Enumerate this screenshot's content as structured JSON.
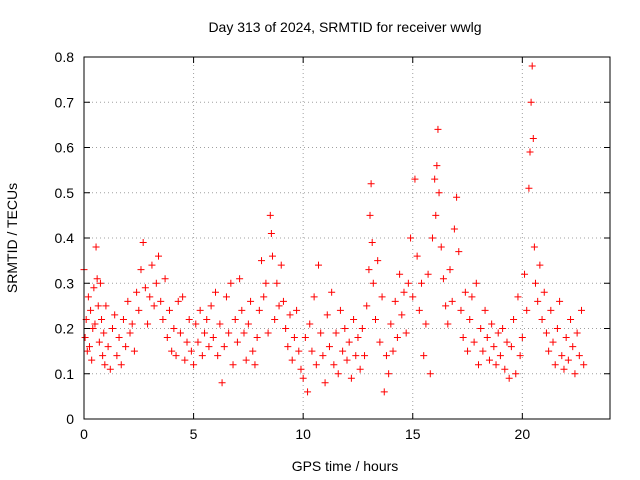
{
  "chart_data": {
    "type": "scatter",
    "title": "Day 313 of 2024, SRMTID for receiver wwlg",
    "xlabel": "GPS time / hours",
    "ylabel": "SRMTID / TECUs",
    "xlim": [
      0,
      24
    ],
    "ylim": [
      0,
      0.8
    ],
    "xticks": [
      0,
      5,
      10,
      15,
      20
    ],
    "xtick_labels": [
      "0",
      "5",
      "10",
      "15",
      "20"
    ],
    "yticks": [
      0,
      0.1,
      0.2,
      0.3,
      0.4,
      0.5,
      0.6,
      0.7,
      0.8
    ],
    "ytick_labels": [
      "0",
      "0.1",
      "0.2",
      "0.3",
      "0.4",
      "0.5",
      "0.6",
      "0.7",
      "0.8"
    ],
    "grid": true,
    "marker": "+",
    "color": "#ff0000",
    "series": [
      {
        "name": "SRMTID",
        "points": [
          [
            0.0,
            0.33
          ],
          [
            0.05,
            0.18
          ],
          [
            0.1,
            0.22
          ],
          [
            0.15,
            0.15
          ],
          [
            0.2,
            0.27
          ],
          [
            0.25,
            0.16
          ],
          [
            0.3,
            0.24
          ],
          [
            0.35,
            0.13
          ],
          [
            0.4,
            0.2
          ],
          [
            0.45,
            0.29
          ],
          [
            0.5,
            0.21
          ],
          [
            0.55,
            0.38
          ],
          [
            0.6,
            0.31
          ],
          [
            0.65,
            0.25
          ],
          [
            0.7,
            0.17
          ],
          [
            0.75,
            0.3
          ],
          [
            0.8,
            0.22
          ],
          [
            0.85,
            0.14
          ],
          [
            0.9,
            0.19
          ],
          [
            0.95,
            0.12
          ],
          [
            1.0,
            0.25
          ],
          [
            1.1,
            0.16
          ],
          [
            1.2,
            0.11
          ],
          [
            1.3,
            0.2
          ],
          [
            1.4,
            0.23
          ],
          [
            1.5,
            0.14
          ],
          [
            1.6,
            0.18
          ],
          [
            1.7,
            0.12
          ],
          [
            1.8,
            0.22
          ],
          [
            1.9,
            0.16
          ],
          [
            2.0,
            0.26
          ],
          [
            2.1,
            0.19
          ],
          [
            2.2,
            0.21
          ],
          [
            2.3,
            0.15
          ],
          [
            2.4,
            0.28
          ],
          [
            2.5,
            0.24
          ],
          [
            2.6,
            0.33
          ],
          [
            2.7,
            0.39
          ],
          [
            2.8,
            0.29
          ],
          [
            2.9,
            0.21
          ],
          [
            3.0,
            0.27
          ],
          [
            3.1,
            0.34
          ],
          [
            3.2,
            0.25
          ],
          [
            3.3,
            0.3
          ],
          [
            3.4,
            0.36
          ],
          [
            3.5,
            0.26
          ],
          [
            3.6,
            0.22
          ],
          [
            3.7,
            0.31
          ],
          [
            3.8,
            0.18
          ],
          [
            3.9,
            0.24
          ],
          [
            4.0,
            0.15
          ],
          [
            4.1,
            0.2
          ],
          [
            4.2,
            0.14
          ],
          [
            4.3,
            0.26
          ],
          [
            4.4,
            0.19
          ],
          [
            4.5,
            0.27
          ],
          [
            4.6,
            0.13
          ],
          [
            4.7,
            0.17
          ],
          [
            4.8,
            0.22
          ],
          [
            4.9,
            0.15
          ],
          [
            5.0,
            0.12
          ],
          [
            5.1,
            0.21
          ],
          [
            5.2,
            0.17
          ],
          [
            5.3,
            0.24
          ],
          [
            5.4,
            0.14
          ],
          [
            5.5,
            0.19
          ],
          [
            5.6,
            0.22
          ],
          [
            5.7,
            0.16
          ],
          [
            5.8,
            0.25
          ],
          [
            5.9,
            0.18
          ],
          [
            6.0,
            0.28
          ],
          [
            6.1,
            0.14
          ],
          [
            6.2,
            0.21
          ],
          [
            6.3,
            0.08
          ],
          [
            6.4,
            0.16
          ],
          [
            6.5,
            0.27
          ],
          [
            6.6,
            0.19
          ],
          [
            6.7,
            0.3
          ],
          [
            6.8,
            0.12
          ],
          [
            6.9,
            0.22
          ],
          [
            7.0,
            0.17
          ],
          [
            7.1,
            0.31
          ],
          [
            7.2,
            0.24
          ],
          [
            7.3,
            0.19
          ],
          [
            7.4,
            0.13
          ],
          [
            7.5,
            0.21
          ],
          [
            7.6,
            0.26
          ],
          [
            7.7,
            0.15
          ],
          [
            7.8,
            0.12
          ],
          [
            7.9,
            0.18
          ],
          [
            8.0,
            0.24
          ],
          [
            8.1,
            0.35
          ],
          [
            8.2,
            0.27
          ],
          [
            8.3,
            0.3
          ],
          [
            8.4,
            0.19
          ],
          [
            8.5,
            0.45
          ],
          [
            8.55,
            0.41
          ],
          [
            8.6,
            0.36
          ],
          [
            8.7,
            0.22
          ],
          [
            8.8,
            0.3
          ],
          [
            8.9,
            0.25
          ],
          [
            9.0,
            0.34
          ],
          [
            9.1,
            0.26
          ],
          [
            9.2,
            0.2
          ],
          [
            9.3,
            0.16
          ],
          [
            9.4,
            0.23
          ],
          [
            9.5,
            0.13
          ],
          [
            9.6,
            0.18
          ],
          [
            9.7,
            0.24
          ],
          [
            9.8,
            0.15
          ],
          [
            9.9,
            0.11
          ],
          [
            10.0,
            0.09
          ],
          [
            10.1,
            0.18
          ],
          [
            10.2,
            0.06
          ],
          [
            10.3,
            0.21
          ],
          [
            10.4,
            0.15
          ],
          [
            10.5,
            0.27
          ],
          [
            10.6,
            0.12
          ],
          [
            10.7,
            0.34
          ],
          [
            10.8,
            0.19
          ],
          [
            10.9,
            0.14
          ],
          [
            11.0,
            0.08
          ],
          [
            11.1,
            0.23
          ],
          [
            11.2,
            0.16
          ],
          [
            11.3,
            0.28
          ],
          [
            11.4,
            0.12
          ],
          [
            11.5,
            0.19
          ],
          [
            11.6,
            0.1
          ],
          [
            11.7,
            0.24
          ],
          [
            11.8,
            0.15
          ],
          [
            11.9,
            0.2
          ],
          [
            12.0,
            0.13
          ],
          [
            12.1,
            0.17
          ],
          [
            12.2,
            0.09
          ],
          [
            12.3,
            0.22
          ],
          [
            12.4,
            0.14
          ],
          [
            12.5,
            0.18
          ],
          [
            12.6,
            0.11
          ],
          [
            12.7,
            0.2
          ],
          [
            12.8,
            0.14
          ],
          [
            12.9,
            0.25
          ],
          [
            13.0,
            0.33
          ],
          [
            13.05,
            0.45
          ],
          [
            13.1,
            0.52
          ],
          [
            13.15,
            0.39
          ],
          [
            13.2,
            0.3
          ],
          [
            13.3,
            0.22
          ],
          [
            13.4,
            0.35
          ],
          [
            13.5,
            0.17
          ],
          [
            13.6,
            0.27
          ],
          [
            13.7,
            0.06
          ],
          [
            13.8,
            0.14
          ],
          [
            13.9,
            0.1
          ],
          [
            14.0,
            0.21
          ],
          [
            14.1,
            0.15
          ],
          [
            14.2,
            0.26
          ],
          [
            14.3,
            0.18
          ],
          [
            14.4,
            0.32
          ],
          [
            14.5,
            0.23
          ],
          [
            14.6,
            0.28
          ],
          [
            14.7,
            0.19
          ],
          [
            14.8,
            0.3
          ],
          [
            14.9,
            0.4
          ],
          [
            15.0,
            0.27
          ],
          [
            15.1,
            0.53
          ],
          [
            15.2,
            0.36
          ],
          [
            15.3,
            0.24
          ],
          [
            15.4,
            0.3
          ],
          [
            15.5,
            0.14
          ],
          [
            15.6,
            0.21
          ],
          [
            15.7,
            0.32
          ],
          [
            15.8,
            0.1
          ],
          [
            15.9,
            0.4
          ],
          [
            16.0,
            0.53
          ],
          [
            16.05,
            0.45
          ],
          [
            16.1,
            0.56
          ],
          [
            16.15,
            0.64
          ],
          [
            16.2,
            0.5
          ],
          [
            16.3,
            0.38
          ],
          [
            16.4,
            0.31
          ],
          [
            16.5,
            0.25
          ],
          [
            16.6,
            0.21
          ],
          [
            16.7,
            0.33
          ],
          [
            16.8,
            0.26
          ],
          [
            16.9,
            0.42
          ],
          [
            17.0,
            0.49
          ],
          [
            17.1,
            0.37
          ],
          [
            17.2,
            0.24
          ],
          [
            17.3,
            0.18
          ],
          [
            17.4,
            0.28
          ],
          [
            17.5,
            0.15
          ],
          [
            17.6,
            0.22
          ],
          [
            17.7,
            0.27
          ],
          [
            17.8,
            0.17
          ],
          [
            17.9,
            0.3
          ],
          [
            18.0,
            0.12
          ],
          [
            18.1,
            0.2
          ],
          [
            18.2,
            0.15
          ],
          [
            18.3,
            0.24
          ],
          [
            18.4,
            0.18
          ],
          [
            18.5,
            0.13
          ],
          [
            18.6,
            0.21
          ],
          [
            18.7,
            0.16
          ],
          [
            18.8,
            0.12
          ],
          [
            18.9,
            0.19
          ],
          [
            19.0,
            0.14
          ],
          [
            19.1,
            0.2
          ],
          [
            19.2,
            0.11
          ],
          [
            19.3,
            0.17
          ],
          [
            19.4,
            0.09
          ],
          [
            19.5,
            0.16
          ],
          [
            19.6,
            0.22
          ],
          [
            19.7,
            0.1
          ],
          [
            19.8,
            0.27
          ],
          [
            19.9,
            0.14
          ],
          [
            20.0,
            0.18
          ],
          [
            20.1,
            0.32
          ],
          [
            20.2,
            0.24
          ],
          [
            20.3,
            0.51
          ],
          [
            20.35,
            0.59
          ],
          [
            20.4,
            0.7
          ],
          [
            20.45,
            0.78
          ],
          [
            20.5,
            0.62
          ],
          [
            20.55,
            0.38
          ],
          [
            20.6,
            0.3
          ],
          [
            20.7,
            0.26
          ],
          [
            20.8,
            0.34
          ],
          [
            20.9,
            0.22
          ],
          [
            21.0,
            0.28
          ],
          [
            21.1,
            0.19
          ],
          [
            21.2,
            0.15
          ],
          [
            21.3,
            0.24
          ],
          [
            21.4,
            0.17
          ],
          [
            21.5,
            0.12
          ],
          [
            21.6,
            0.2
          ],
          [
            21.7,
            0.26
          ],
          [
            21.8,
            0.14
          ],
          [
            21.9,
            0.11
          ],
          [
            22.0,
            0.18
          ],
          [
            22.1,
            0.13
          ],
          [
            22.2,
            0.22
          ],
          [
            22.3,
            0.16
          ],
          [
            22.4,
            0.1
          ],
          [
            22.5,
            0.19
          ],
          [
            22.6,
            0.14
          ],
          [
            22.7,
            0.24
          ],
          [
            22.8,
            0.12
          ]
        ]
      }
    ]
  }
}
